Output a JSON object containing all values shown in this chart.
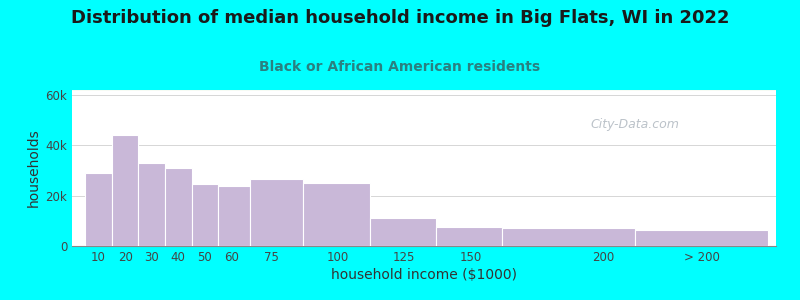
{
  "title": "Distribution of median household income in Big Flats, WI in 2022",
  "subtitle": "Black or African American residents",
  "xlabel": "household income ($1000)",
  "ylabel": "households",
  "background_color": "#00FFFF",
  "plot_bg_top": "#e6f4e0",
  "plot_bg_bottom": "#ffffff",
  "bar_color": "#c9b8d8",
  "bar_edge_color": "#ffffff",
  "categories": [
    "10",
    "20",
    "30",
    "40",
    "50",
    "60",
    "75",
    "100",
    "125",
    "150",
    "200",
    "> 200"
  ],
  "values": [
    29000,
    44000,
    33000,
    31000,
    24500,
    24000,
    26500,
    25000,
    11000,
    7500,
    7000,
    6500
  ],
  "bar_lefts": [
    5,
    15,
    25,
    35,
    45,
    55,
    67,
    87,
    112,
    137,
    162,
    212
  ],
  "bar_widths": [
    10,
    10,
    10,
    10,
    10,
    12,
    20,
    25,
    25,
    25,
    50,
    50
  ],
  "x_tick_pos": [
    10,
    20,
    30,
    40,
    50,
    60,
    75,
    100,
    125,
    150,
    200,
    237
  ],
  "xlim": [
    0,
    265
  ],
  "ylim": [
    0,
    62000
  ],
  "yticks": [
    0,
    20000,
    40000,
    60000
  ],
  "ytick_labels": [
    "0",
    "20k",
    "40k",
    "60k"
  ],
  "watermark": "City-Data.com",
  "title_color": "#1a1a1a",
  "subtitle_color": "#2a8080",
  "title_fontsize": 13,
  "subtitle_fontsize": 10,
  "axis_label_fontsize": 10,
  "tick_fontsize": 8.5
}
